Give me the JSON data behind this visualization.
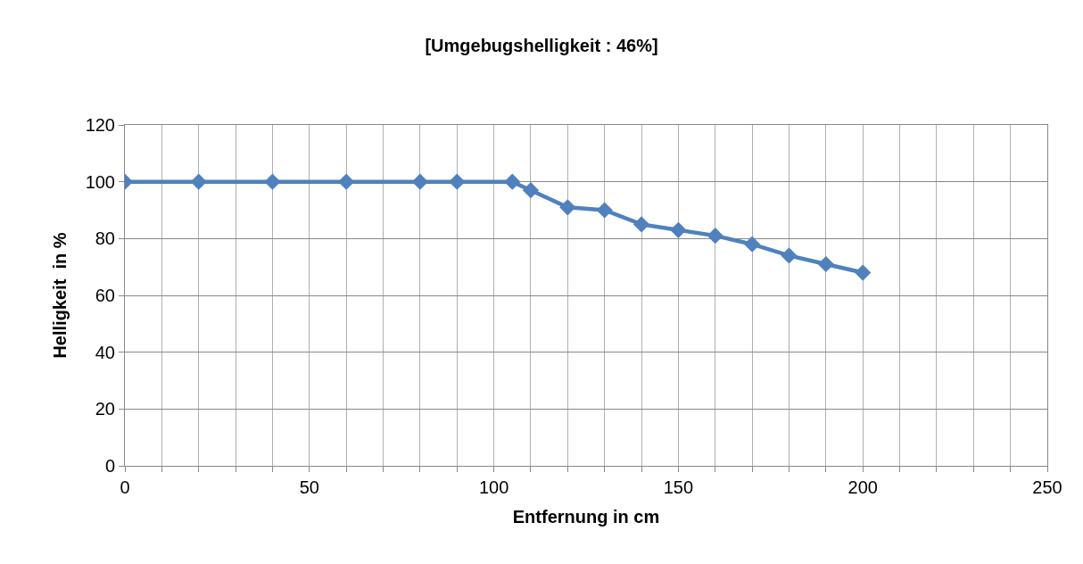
{
  "chart_data": {
    "type": "line",
    "title": "[Umgebugshelligkeit : 46%]",
    "xlabel": "Entfernung in cm",
    "ylabel": "Helligkeit  in %",
    "x": [
      0,
      20,
      40,
      60,
      80,
      90,
      105,
      110,
      120,
      130,
      140,
      150,
      160,
      170,
      180,
      190,
      200
    ],
    "series": [
      {
        "color": "#4f81bd",
        "values": [
          100,
          100,
          100,
          100,
          100,
          100,
          100,
          97,
          91,
          90,
          85,
          83,
          81,
          78,
          74,
          71,
          68
        ]
      }
    ],
    "xlim": [
      0,
      250
    ],
    "xticks": [
      0,
      {
        "value": 10,
        "label": null
      },
      {
        "value": 20,
        "label": null
      },
      {
        "value": 30,
        "label": null
      },
      {
        "value": 40,
        "label": null
      },
      50,
      {
        "value": 60,
        "label": null
      },
      {
        "value": 70,
        "label": null
      },
      {
        "value": 80,
        "label": null
      },
      {
        "value": 90,
        "label": null
      },
      100,
      {
        "value": 110,
        "label": null
      },
      {
        "value": 120,
        "label": null
      },
      {
        "value": 130,
        "label": null
      },
      {
        "value": 140,
        "label": null
      },
      150,
      {
        "value": 160,
        "label": null
      },
      {
        "value": 170,
        "label": null
      },
      {
        "value": 180,
        "label": null
      },
      {
        "value": 190,
        "label": null
      },
      200,
      {
        "value": 210,
        "label": null
      },
      {
        "value": 220,
        "label": null
      },
      {
        "value": 230,
        "label": null
      },
      {
        "value": 240,
        "label": null
      },
      250
    ],
    "ylim": [
      0,
      120
    ],
    "yticks": [
      0,
      20,
      40,
      60,
      80,
      100,
      120
    ],
    "grid": true,
    "marker": "diamond",
    "line_style": "solid"
  }
}
